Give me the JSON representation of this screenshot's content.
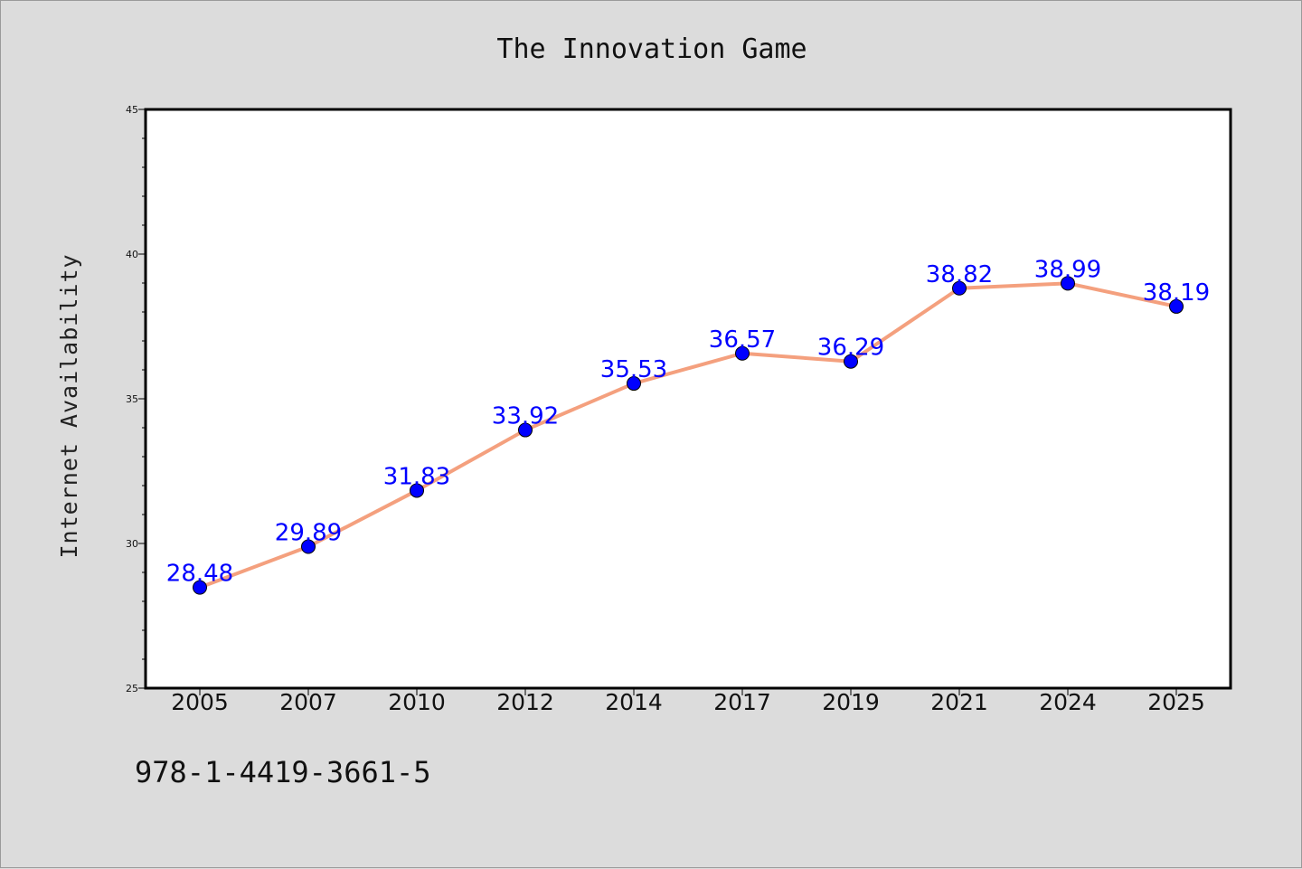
{
  "chart_data": {
    "type": "line",
    "title": "The Innovation Game",
    "xlabel": "",
    "ylabel": "Internet Availability",
    "categories": [
      "2005",
      "2007",
      "2010",
      "2012",
      "2014",
      "2017",
      "2019",
      "2021",
      "2024",
      "2025"
    ],
    "series": [
      {
        "values": [
          28.48,
          29.89,
          31.83,
          33.92,
          35.53,
          36.57,
          36.29,
          38.82,
          38.99,
          38.19
        ],
        "line_color": "#f4a07e",
        "marker_color": "#0000ff"
      }
    ],
    "data_labels": [
      "28.48",
      "29.89",
      "31.83",
      "33.92",
      "35.53",
      "36.57",
      "36.29",
      "38.82",
      "38.99",
      "38.19"
    ],
    "ylim": [
      25,
      45
    ],
    "yticks": [
      25,
      30,
      35,
      40,
      45
    ],
    "grid": false,
    "legend": "none"
  },
  "caption": "978-1-4419-3661-5",
  "colors": {
    "background": "#dcdcdc",
    "plot_background": "#ffffff",
    "line": "#f4a07e",
    "marker": "#0000ff",
    "data_label": "#0000ff"
  }
}
